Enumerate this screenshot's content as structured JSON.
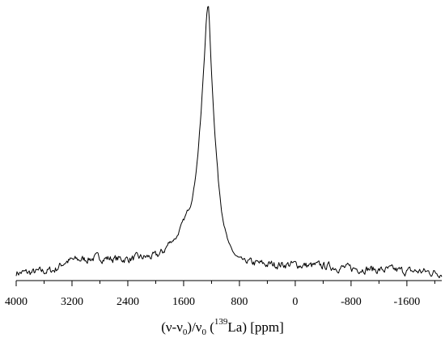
{
  "chart_data": {
    "type": "line",
    "title": "",
    "xlabel_parts": {
      "open": "(ν-ν",
      "sub0": "0",
      "mid": ")/ν",
      "sub1": "0",
      "paren": " (",
      "isotope": "139",
      "element": "La) [ppm]"
    },
    "ylabel": "",
    "x_reversed": true,
    "xlim": [
      4000,
      -2100
    ],
    "ylim": [
      0,
      1.0
    ],
    "x_ticks": [
      4000,
      3200,
      2400,
      1600,
      800,
      0,
      -800,
      -1600
    ],
    "x_tick_labels": [
      "4000",
      "3200",
      "2400",
      "1600",
      "800",
      "0",
      "-800",
      "-1600"
    ],
    "y_axis_shown": false,
    "grid": false,
    "legend": "none",
    "line_color": "#000000",
    "series": [
      {
        "x": [
          4000,
          3800,
          3600,
          3450,
          3300,
          3200,
          3000,
          2800,
          2600,
          2400,
          2200,
          2000,
          1900,
          1800,
          1700,
          1600,
          1500,
          1450,
          1400,
          1350,
          1300,
          1280,
          1260,
          1250,
          1240,
          1230,
          1200,
          1150,
          1100,
          1050,
          1000,
          950,
          900,
          850,
          800,
          700,
          600,
          400,
          200,
          0,
          -200,
          -400,
          -600,
          -800,
          -1000,
          -1200,
          -1400,
          -1600,
          -1800,
          -2000,
          -2100
        ],
        "y": [
          0.02,
          0.02,
          0.025,
          0.03,
          0.06,
          0.065,
          0.07,
          0.075,
          0.07,
          0.07,
          0.075,
          0.08,
          0.095,
          0.13,
          0.15,
          0.21,
          0.27,
          0.33,
          0.44,
          0.6,
          0.82,
          0.92,
          0.98,
          1.0,
          0.98,
          0.93,
          0.75,
          0.52,
          0.35,
          0.24,
          0.17,
          0.12,
          0.1,
          0.08,
          0.07,
          0.06,
          0.055,
          0.05,
          0.05,
          0.05,
          0.045,
          0.045,
          0.04,
          0.035,
          0.035,
          0.03,
          0.03,
          0.025,
          0.025,
          0.02,
          0.02
        ]
      }
    ]
  }
}
